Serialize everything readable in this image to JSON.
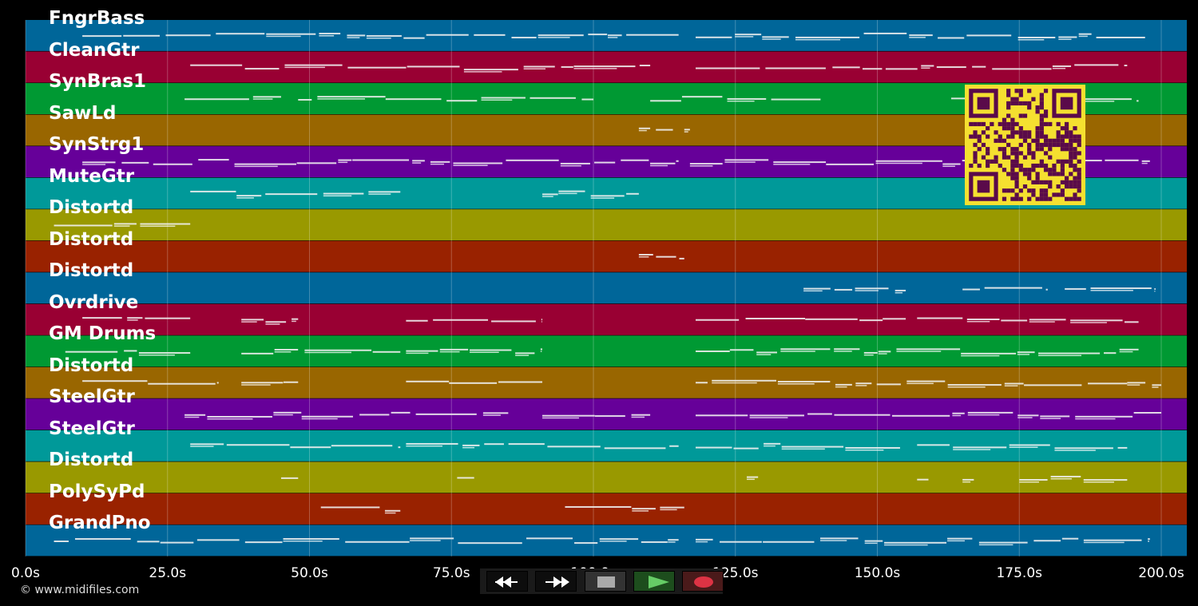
{
  "tracks": [
    {
      "name": "FngrBass",
      "color": "#006699"
    },
    {
      "name": "CleanGtr",
      "color": "#990033"
    },
    {
      "name": "SynBras1",
      "color": "#009933"
    },
    {
      "name": "SawLd",
      "color": "#996600"
    },
    {
      "name": "SynStrg1",
      "color": "#660099"
    },
    {
      "name": "MuteGtr",
      "color": "#009999"
    },
    {
      "name": "Distortd",
      "color": "#999900"
    },
    {
      "name": "Distortd",
      "color": "#992200"
    },
    {
      "name": "Distortd",
      "color": "#006699"
    },
    {
      "name": "Ovrdrive",
      "color": "#990033"
    },
    {
      "name": "GM Drums",
      "color": "#009933"
    },
    {
      "name": "Distortd",
      "color": "#996600"
    },
    {
      "name": "SteelGtr",
      "color": "#660099"
    },
    {
      "name": "SteelGtr",
      "color": "#009999"
    },
    {
      "name": "Distortd",
      "color": "#999900"
    },
    {
      "name": "PolySyPd",
      "color": "#992200"
    },
    {
      "name": "GrandPno",
      "color": "#006699"
    }
  ],
  "timeline": {
    "ticks": [
      "0.0s",
      "25.0s",
      "50.0s",
      "75.0s",
      "100.0s",
      "125.0s",
      "150.0s",
      "175.0s",
      "200.0s"
    ],
    "tick_values": [
      0,
      25,
      50,
      75,
      100,
      125,
      150,
      175,
      200
    ],
    "max_seconds": 204.5
  },
  "note_spans": [
    [
      [
        10,
        115
      ],
      [
        118,
        198
      ]
    ],
    [
      [
        29,
        110
      ],
      [
        118,
        194
      ]
    ],
    [
      [
        28,
        45
      ],
      [
        48,
        100
      ],
      [
        110,
        140
      ],
      [
        163,
        196
      ]
    ],
    [
      [
        108,
        110
      ],
      [
        111,
        114
      ],
      [
        116,
        117
      ]
    ],
    [
      [
        10,
        115
      ],
      [
        117,
        198
      ]
    ],
    [
      [
        29,
        66
      ],
      [
        91,
        108
      ]
    ],
    [
      [
        5,
        29
      ]
    ],
    [
      [
        108,
        116
      ]
    ],
    [
      [
        137,
        155
      ],
      [
        165,
        180
      ],
      [
        183,
        199
      ]
    ],
    [
      [
        10,
        29
      ],
      [
        38,
        48
      ],
      [
        67,
        91
      ],
      [
        118,
        155
      ],
      [
        157,
        196
      ]
    ],
    [
      [
        7,
        29
      ],
      [
        38,
        66
      ],
      [
        67,
        91
      ],
      [
        118,
        196
      ]
    ],
    [
      [
        10,
        34
      ],
      [
        38,
        48
      ],
      [
        67,
        91
      ],
      [
        118,
        194
      ],
      [
        194,
        200
      ]
    ],
    [
      [
        28,
        85
      ],
      [
        91,
        110
      ],
      [
        118,
        200
      ]
    ],
    [
      [
        29,
        66
      ],
      [
        67,
        115
      ],
      [
        118,
        154
      ],
      [
        157,
        194
      ]
    ],
    [
      [
        45,
        48
      ],
      [
        76,
        79
      ],
      [
        127,
        129
      ],
      [
        157,
        159
      ],
      [
        165,
        167
      ],
      [
        175,
        194
      ]
    ],
    [
      [
        52,
        66
      ],
      [
        95,
        116
      ]
    ],
    [
      [
        5,
        115
      ],
      [
        118,
        198
      ]
    ]
  ],
  "transport": {
    "rewind_icon": "rewind-icon",
    "fast_forward_icon": "fast-forward-icon",
    "stop_icon": "stop-icon",
    "play_icon": "play-icon",
    "record_icon": "record-icon",
    "play_color": "#66cc66",
    "record_color": "#dd3344"
  },
  "footer": {
    "copyright": "© www.midifiles.com"
  },
  "qr": {
    "fg": "#5a0a4a",
    "bg": "#f5e030"
  }
}
